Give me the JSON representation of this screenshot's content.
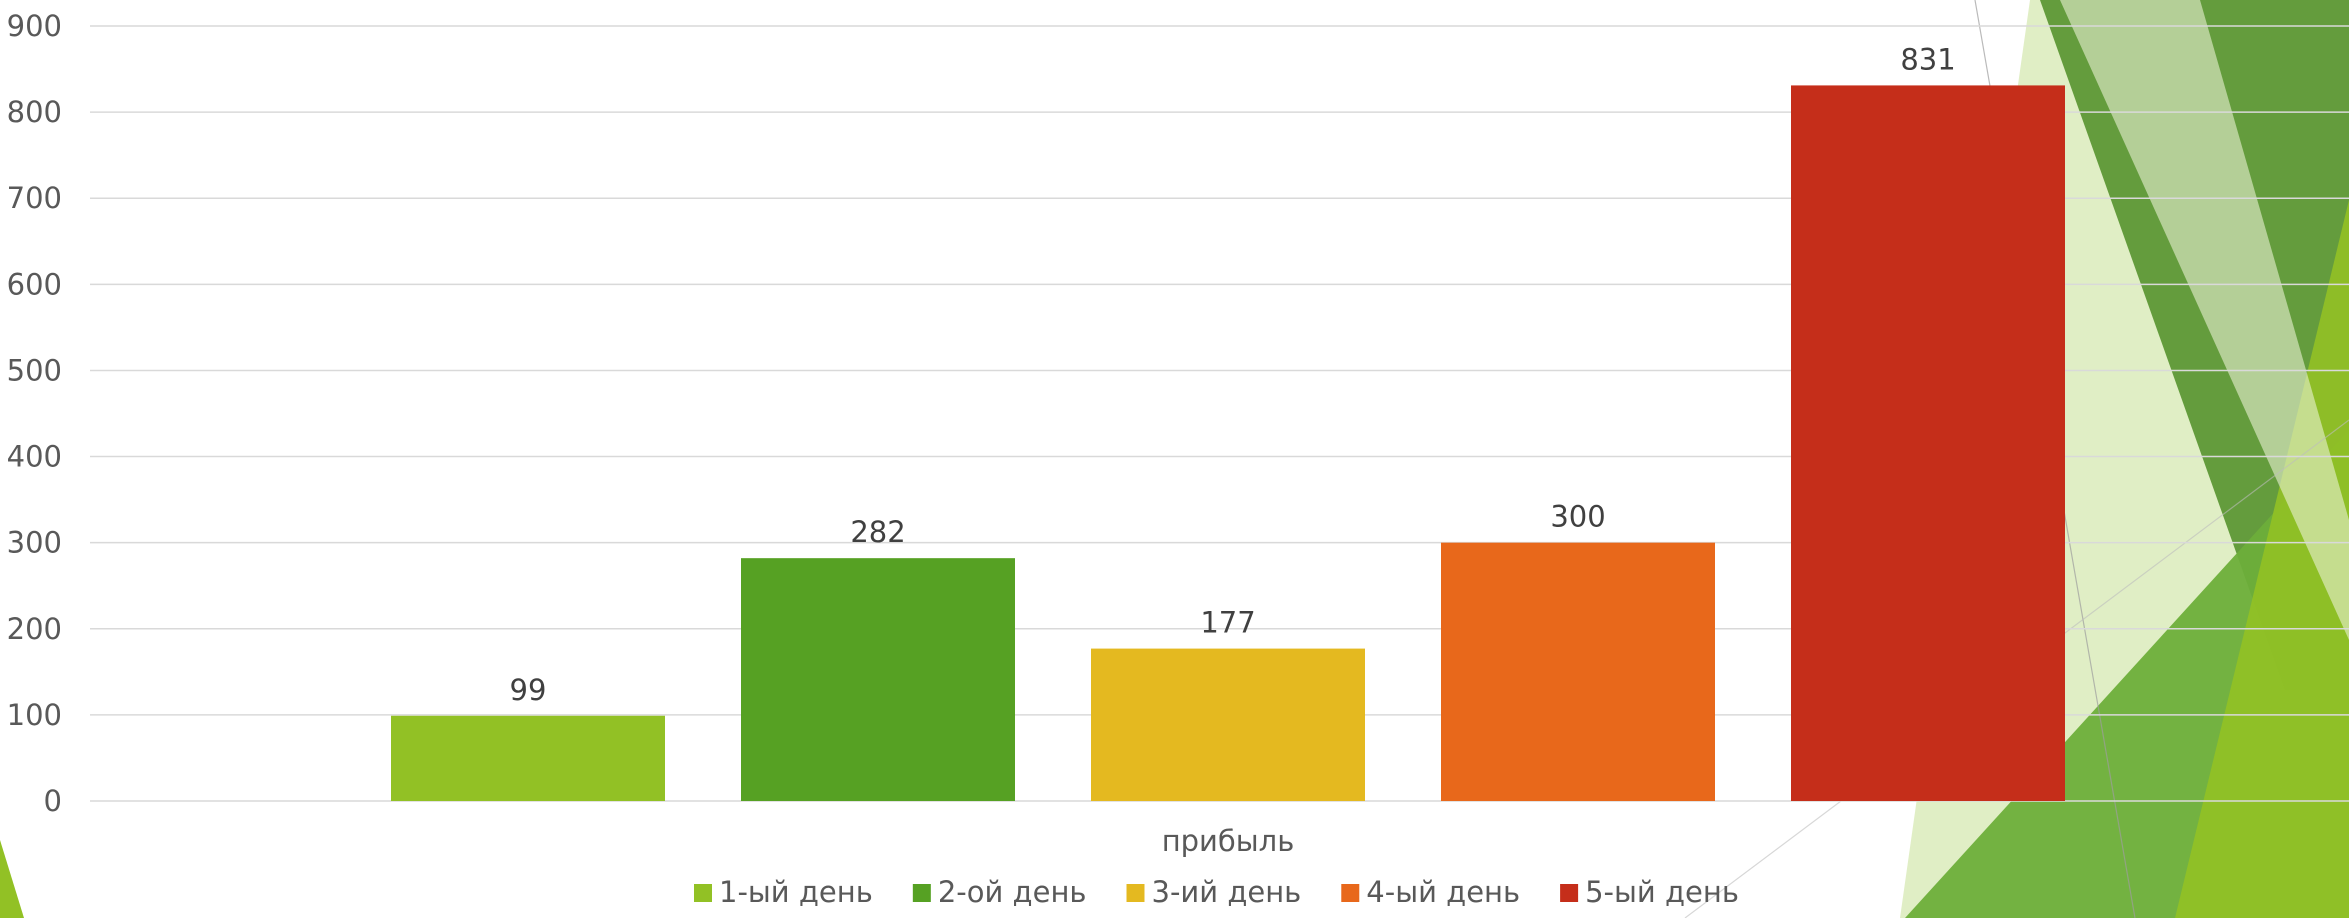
{
  "chart_data": {
    "type": "bar",
    "categories": [
      "прибыль"
    ],
    "series": [
      {
        "name": "1-ый день",
        "values": [
          99
        ],
        "color": "#92C125"
      },
      {
        "name": "2-ой день",
        "values": [
          282
        ],
        "color": "#56A123"
      },
      {
        "name": "3-ий день",
        "values": [
          177
        ],
        "color": "#E4B920"
      },
      {
        "name": "4-ый день",
        "values": [
          300
        ],
        "color": "#E8681B"
      },
      {
        "name": "5-ый день",
        "values": [
          831
        ],
        "color": "#C52E1A"
      }
    ],
    "title": "",
    "xlabel": "",
    "ylabel": "",
    "ylim": [
      0,
      900
    ],
    "yticks": [
      0,
      100,
      200,
      300,
      400,
      500,
      600,
      700,
      800,
      900
    ],
    "grid": true,
    "legend": "bottom",
    "data_labels": true
  },
  "theme": {
    "accent_colors": [
      "#92C125",
      "#56A123",
      "#3F7F1A",
      "#D8E9B4"
    ],
    "grid_color": "#D9D9D9"
  }
}
